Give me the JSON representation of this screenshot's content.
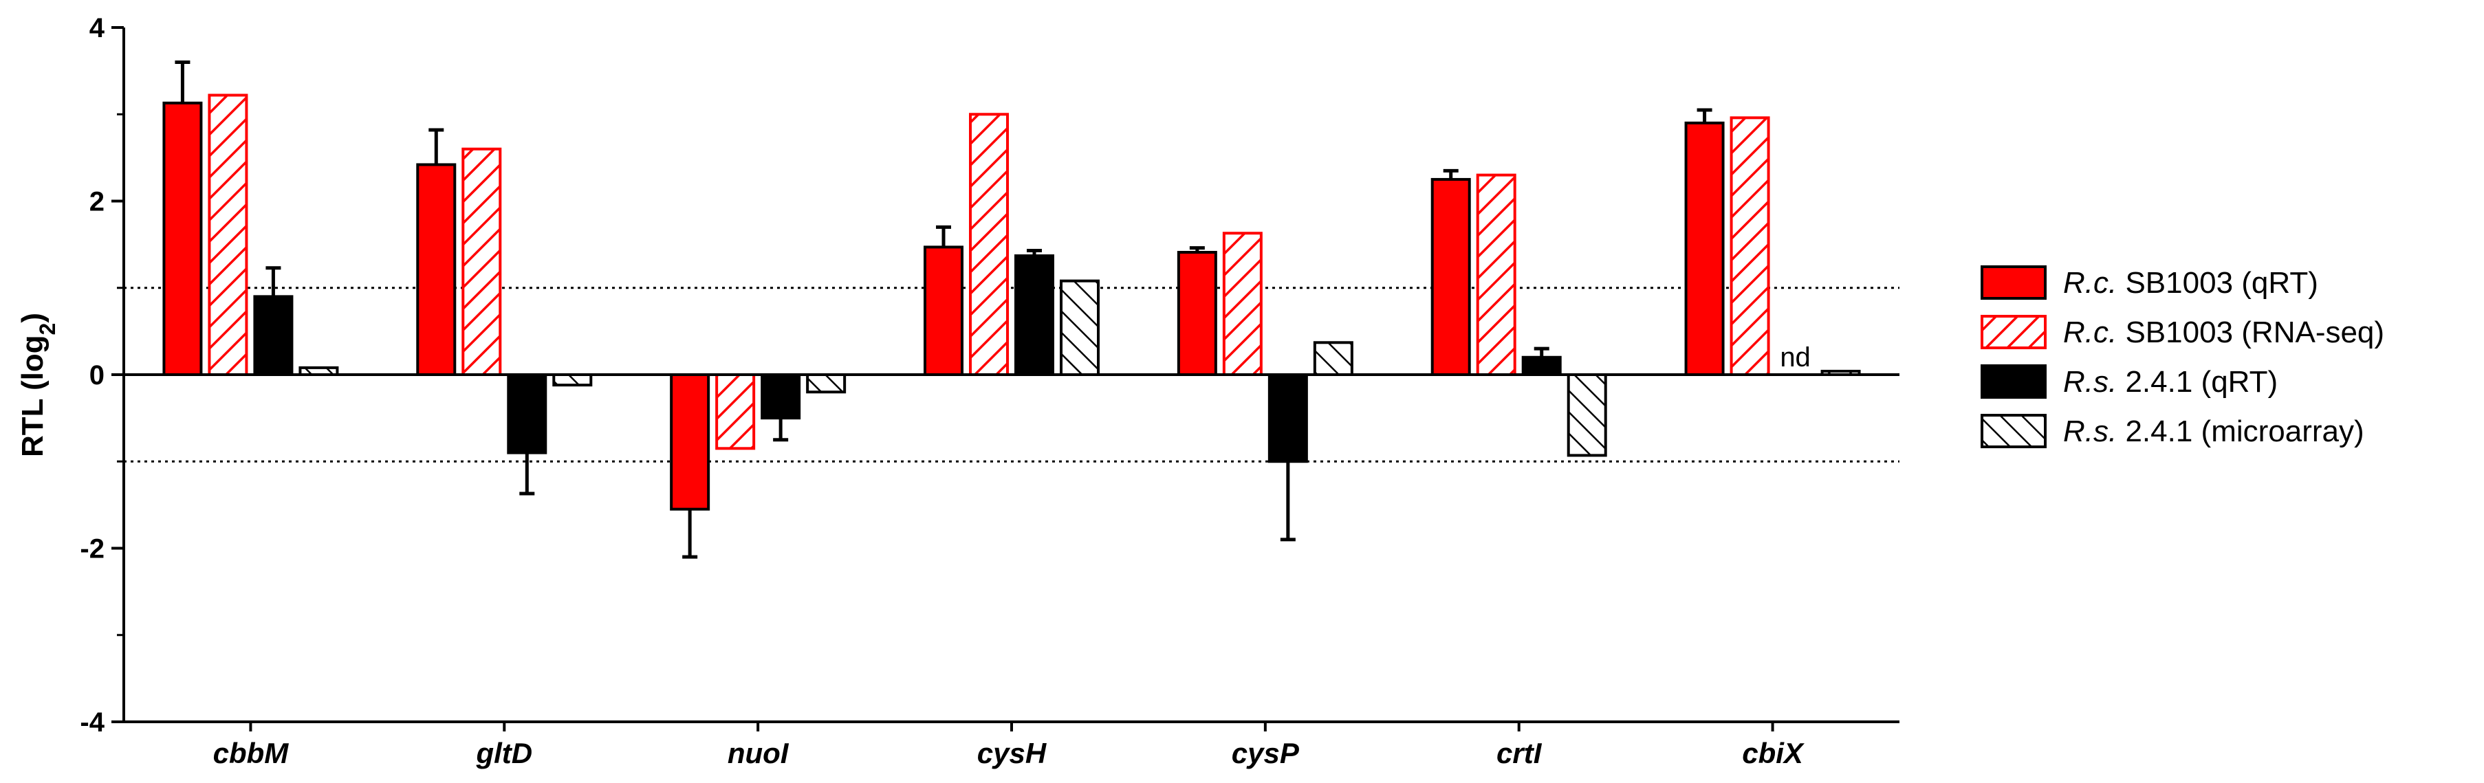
{
  "chart_data": {
    "type": "bar",
    "ylabel": "RTL (log",
    "ylabel_sub": "2",
    "ylabel_close": ")",
    "ylim": [
      -4,
      4
    ],
    "yticks": [
      -4,
      -2,
      0,
      2,
      4
    ],
    "ytick_labels": [
      "-4",
      "-2",
      "0",
      "2",
      "4"
    ],
    "reference_lines": [
      1,
      -1
    ],
    "categories": [
      "cbbM",
      "gltD",
      "nuoI",
      "cysH",
      "cysP",
      "crtI",
      "cbiX"
    ],
    "series": [
      {
        "name": "R.c. SB1003 (qRT)",
        "name_italic": "R.c.",
        "name_rest": " SB1003 (qRT)",
        "style": "solid-red",
        "values": [
          3.13,
          2.42,
          -1.55,
          1.47,
          1.41,
          2.25,
          2.9
        ],
        "errors": [
          0.47,
          0.4,
          0.55,
          0.23,
          0.05,
          0.1,
          0.15
        ]
      },
      {
        "name": "R.c. SB1003 (RNA-seq)",
        "name_italic": "R.c.",
        "name_rest": " SB1003 (RNA-seq)",
        "style": "hatch-red",
        "values": [
          3.22,
          2.6,
          -0.85,
          3.0,
          1.63,
          2.3,
          2.96
        ],
        "errors": [
          null,
          null,
          null,
          null,
          null,
          null,
          null
        ]
      },
      {
        "name": "R.s. 2.4.1 (qRT)",
        "name_italic": "R.s.",
        "name_rest": " 2.4.1 (qRT)",
        "style": "solid-black",
        "values": [
          0.9,
          -0.9,
          -0.5,
          1.37,
          -1.0,
          0.2,
          null
        ],
        "errors": [
          0.33,
          0.47,
          0.25,
          0.06,
          0.9,
          0.1,
          null
        ]
      },
      {
        "name": "R.s. 2.4.1 (microarray)",
        "name_italic": "R.s.",
        "name_rest": " 2.4.1 (microarray)",
        "style": "hatch-black",
        "values": [
          0.08,
          -0.12,
          -0.2,
          1.08,
          0.37,
          -0.93,
          0.04
        ],
        "errors": [
          null,
          null,
          null,
          null,
          null,
          null,
          null
        ]
      }
    ],
    "annotations": [
      {
        "category": "cbiX",
        "series": "R.s. 2.4.1 (qRT)",
        "text": "nd"
      }
    ],
    "legend_position": "right"
  }
}
